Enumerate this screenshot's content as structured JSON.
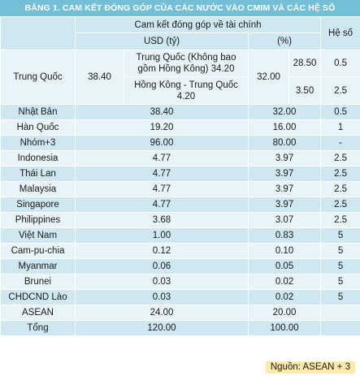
{
  "title": "BẢNG 1. CAM KẾT ĐÓNG GÓP CỦA CÁC NƯỚC VÀO CMIM VÀ CÁC HỆ SỐ",
  "header": {
    "commitment": "Cam kết đóng góp về tài chính",
    "usd": "USD (tỷ)",
    "percent": "(%)",
    "coefficient": "Hệ số"
  },
  "china_block": {
    "name": "Trung Quốc",
    "usd_total": "38.40",
    "sub1_label": "Trung Quốc (Không bao gồm Hồng Kông)",
    "sub1_value": "34.20",
    "sub2_label": "Hồng Kông - Trung Quốc",
    "sub2_value": "4.20",
    "percent_total": "32.00",
    "sub1_percent": "28.50",
    "sub2_percent": "3.50",
    "sub1_coef": "0.5",
    "sub2_coef": "2.5"
  },
  "rows": [
    {
      "name": "Nhật Bản",
      "usd": "38.40",
      "percent": "32.00",
      "coef": "0.5"
    },
    {
      "name": "Hàn Quốc",
      "usd": "19.20",
      "percent": "16.00",
      "coef": "1"
    },
    {
      "name": "Nhóm+3",
      "usd": "96.00",
      "percent": "80.00",
      "coef": "-"
    },
    {
      "name": "Indonesia",
      "usd": "4.77",
      "percent": "3.97",
      "coef": "2.5"
    },
    {
      "name": "Thái Lan",
      "usd": "4.77",
      "percent": "3.97",
      "coef": "2.5"
    },
    {
      "name": "Malaysia",
      "usd": "4.77",
      "percent": "3.97",
      "coef": "2.5"
    },
    {
      "name": "Singapore",
      "usd": "4.77",
      "percent": "3.97",
      "coef": "2.5"
    },
    {
      "name": "Philippines",
      "usd": "3.68",
      "percent": "3.07",
      "coef": "2.5"
    },
    {
      "name": "Việt Nam",
      "usd": "1.00",
      "percent": "0.83",
      "coef": "5"
    },
    {
      "name": "Cam-pu-chia",
      "usd": "0.12",
      "percent": "0.10",
      "coef": "5"
    },
    {
      "name": "Myanmar",
      "usd": "0.06",
      "percent": "0.05",
      "coef": "5"
    },
    {
      "name": "Brunei",
      "usd": "0.03",
      "percent": "0.02",
      "coef": "5"
    },
    {
      "name": "CHDCND Lào",
      "usd": "0.03",
      "percent": "0.02",
      "coef": "5"
    },
    {
      "name": "ASEAN",
      "usd": "24.00",
      "percent": "20.00",
      "coef": ""
    },
    {
      "name": "Tổng",
      "usd": "120.00",
      "percent": "100.00",
      "coef": ""
    }
  ],
  "source": "Nguồn: ASEAN + 3",
  "colors": {
    "title_bar": "#74bfd8",
    "row_dark": "#cfe7f1",
    "row_light": "#e9f4f8",
    "source_bg": "#fde9a8"
  }
}
